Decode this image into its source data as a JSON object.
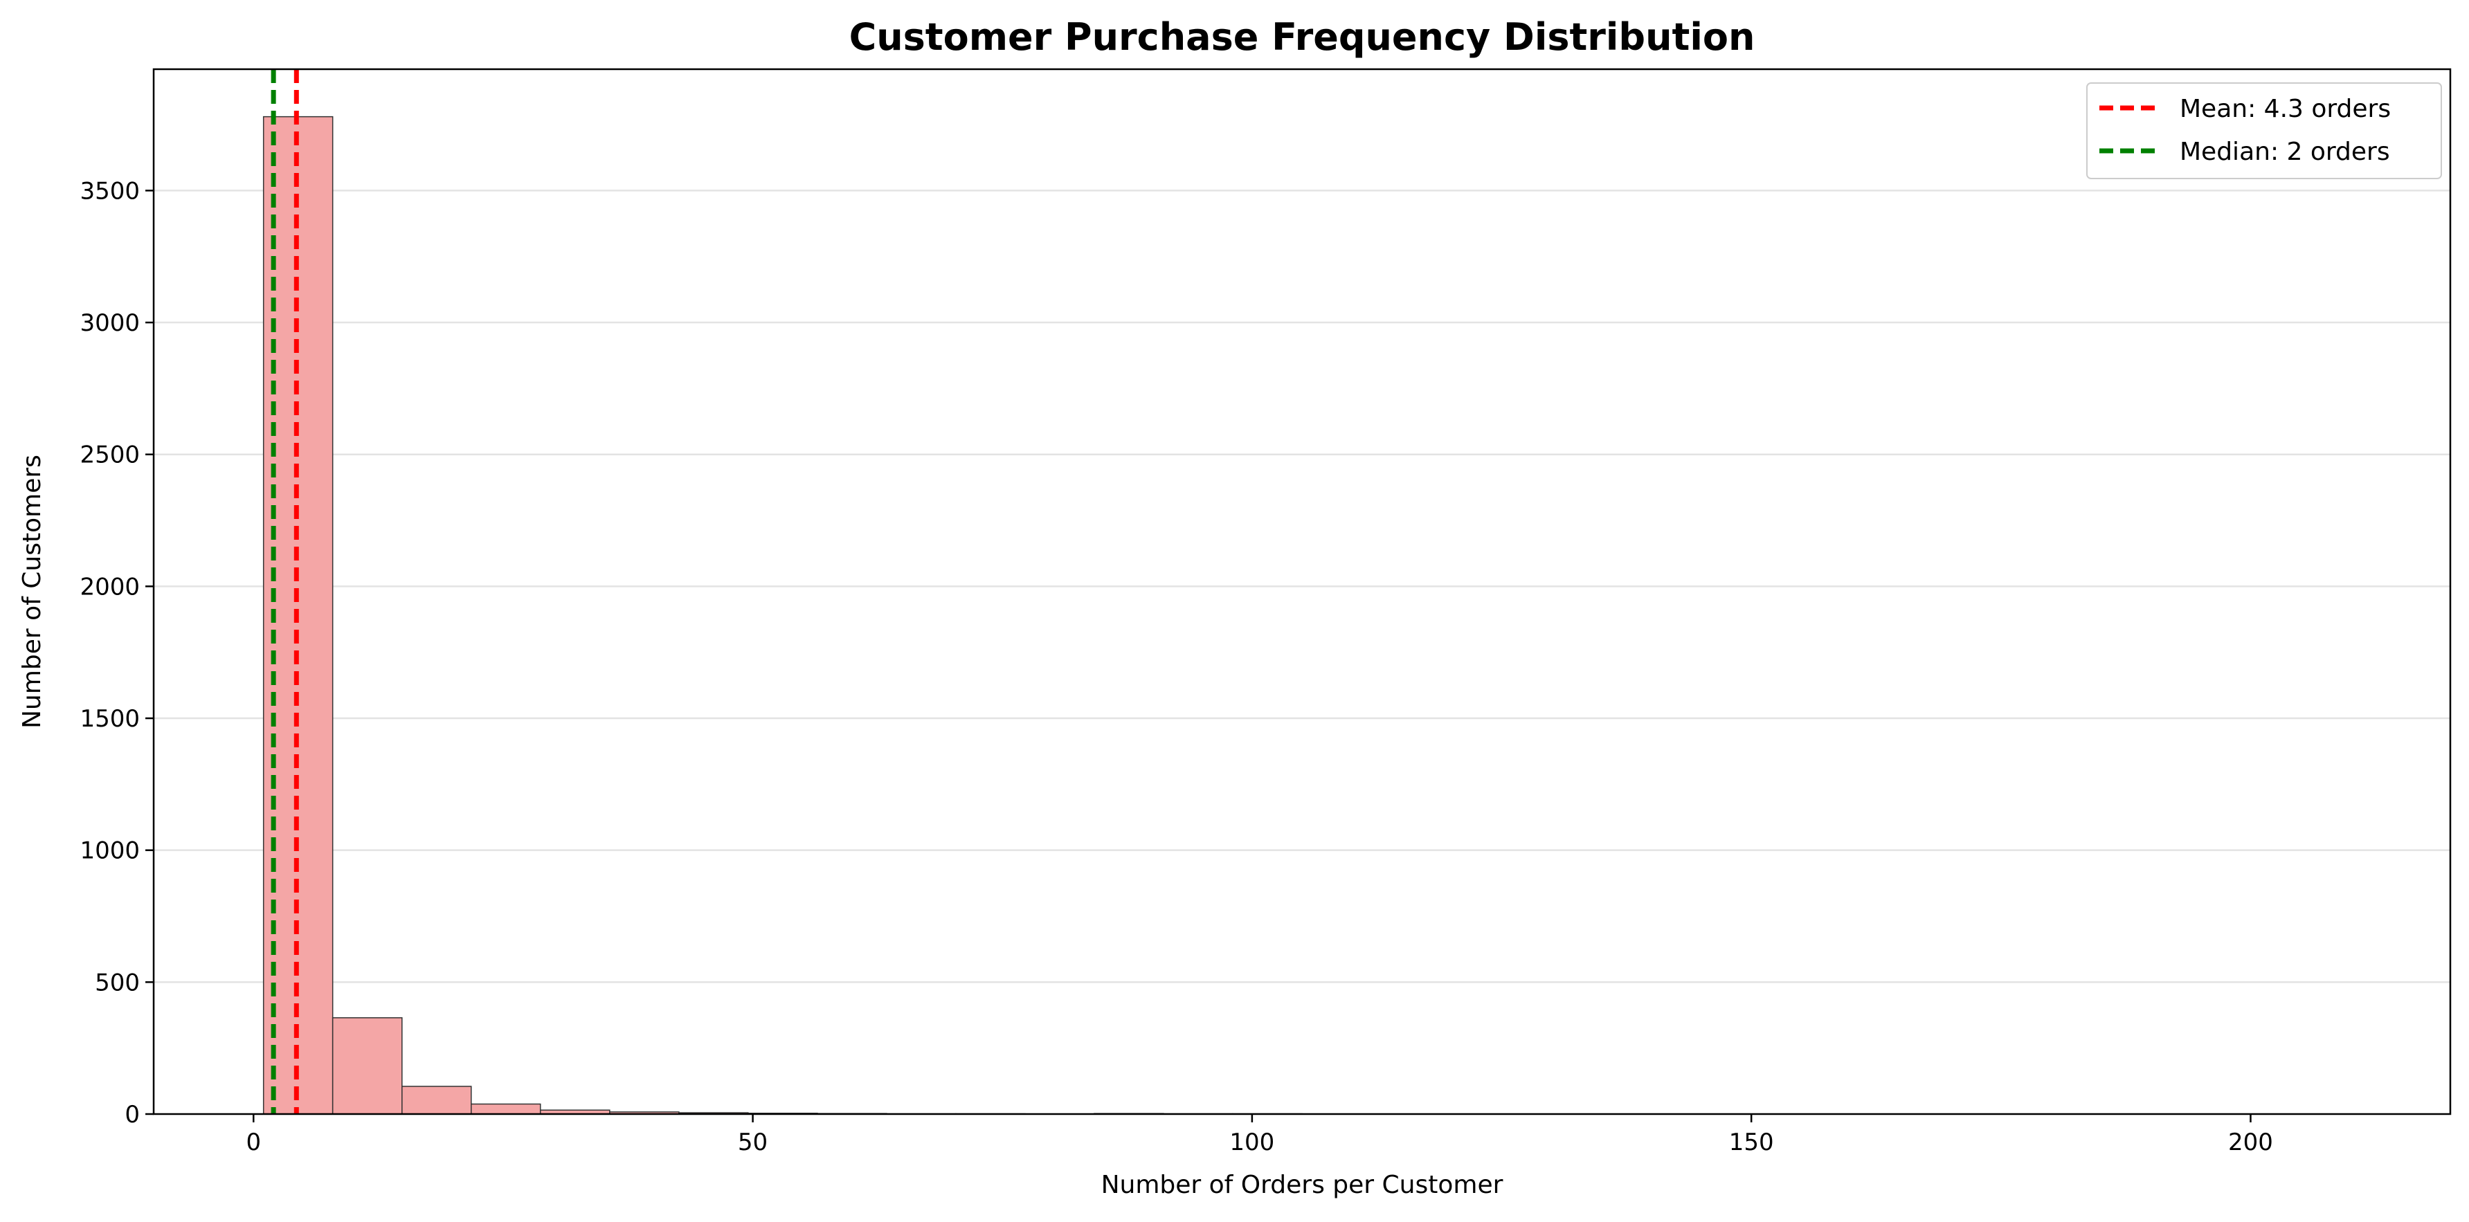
{
  "chart_data": {
    "type": "bar",
    "title": "Customer Purchase Frequency Distribution",
    "xlabel": "Number of Orders per Customer",
    "ylabel": "Number of Customers",
    "xlim": [
      -10,
      220
    ],
    "ylim": [
      0,
      3960
    ],
    "xticks": [
      0,
      50,
      100,
      150,
      200
    ],
    "yticks": [
      0,
      500,
      1000,
      1500,
      2000,
      2500,
      3000,
      3500
    ],
    "grid": "y",
    "legend_position": "top-right",
    "bin_edges": [
      1,
      7.93,
      14.87,
      21.8,
      28.73,
      35.67,
      42.6,
      49.53,
      56.47,
      63.4,
      70.33,
      77.27,
      84.2,
      91.13,
      98.07,
      105,
      111.93,
      118.87,
      125.8,
      132.73,
      139.67,
      146.6,
      153.53,
      160.47,
      167.4,
      174.33,
      181.27,
      188.2,
      195.13,
      202.07,
      209
    ],
    "counts": [
      3780,
      365,
      105,
      38,
      15,
      8,
      5,
      3,
      2,
      1,
      1,
      0,
      2,
      1,
      1,
      0,
      0,
      0,
      0,
      0,
      0,
      0,
      0,
      0,
      0,
      0,
      0,
      0,
      0,
      0
    ],
    "bar_color": "#f4a6a6",
    "bar_edge_color": "#333333",
    "reference_lines": [
      {
        "label": "Mean: 4.3 orders",
        "x": 4.3,
        "color": "#ff0000"
      },
      {
        "label": "Median: 2 orders",
        "x": 2,
        "color": "#008000"
      }
    ]
  }
}
